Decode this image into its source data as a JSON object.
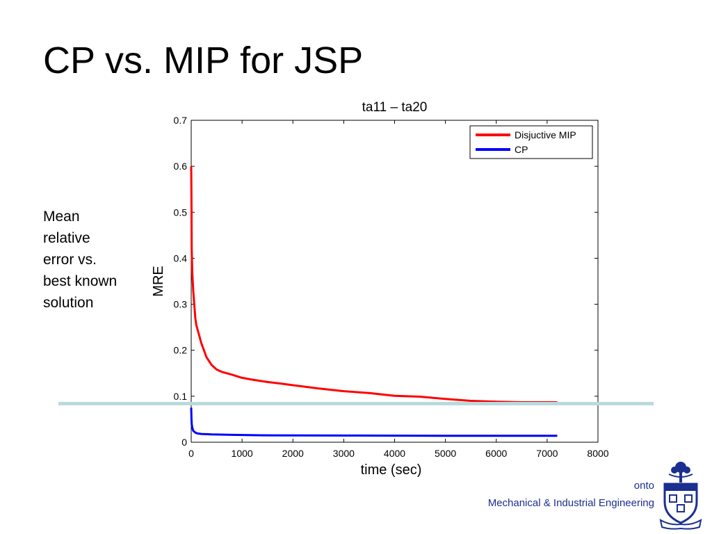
{
  "slide": {
    "title": "CP vs. MIP for JSP",
    "side_note": [
      "Mean",
      "relative",
      "error vs.",
      "best known",
      "solution"
    ],
    "footer": {
      "university_fragment": "onto",
      "department": "Mechanical & Industrial Engineering"
    },
    "crest_icon": "university-crest-icon",
    "colors": {
      "footer_text": "#1a2f8f",
      "divider": "#b9dadd"
    }
  },
  "chart_data": {
    "type": "line",
    "title": "ta11 – ta20",
    "xlabel": "time (sec)",
    "ylabel": "MRE",
    "xlim": [
      0,
      8000
    ],
    "ylim": [
      0,
      0.7
    ],
    "xticks": [
      0,
      1000,
      2000,
      3000,
      4000,
      5000,
      6000,
      7000,
      8000
    ],
    "yticks": [
      0,
      0.1,
      0.2,
      0.3,
      0.4,
      0.5,
      0.6,
      0.7
    ],
    "ytick_labels": [
      "0",
      "0.1",
      "0.2",
      "0.3",
      "0.4",
      "0.5",
      "0.6",
      "0.7"
    ],
    "grid": false,
    "legend_position": "top-right",
    "series": [
      {
        "name": "Disjuctive MIP",
        "color": "#ff0000",
        "x": [
          0,
          5,
          10,
          20,
          40,
          60,
          80,
          100,
          150,
          200,
          250,
          300,
          400,
          500,
          600,
          800,
          1000,
          1200,
          1500,
          1800,
          2000,
          2500,
          3000,
          3500,
          4000,
          4500,
          5000,
          5500,
          6000,
          6500,
          7000,
          7200
        ],
        "y": [
          0.6,
          0.52,
          0.42,
          0.37,
          0.33,
          0.3,
          0.27,
          0.255,
          0.235,
          0.215,
          0.2,
          0.185,
          0.168,
          0.158,
          0.153,
          0.147,
          0.14,
          0.136,
          0.131,
          0.127,
          0.124,
          0.117,
          0.111,
          0.107,
          0.101,
          0.099,
          0.094,
          0.09,
          0.088,
          0.087,
          0.087,
          0.087
        ]
      },
      {
        "name": "CP",
        "color": "#0000ff",
        "x": [
          0,
          5,
          10,
          20,
          40,
          80,
          120,
          200,
          400,
          800,
          1500,
          3000,
          5000,
          7000,
          7200
        ],
        "y": [
          0.075,
          0.05,
          0.04,
          0.032,
          0.025,
          0.021,
          0.019,
          0.018,
          0.017,
          0.016,
          0.015,
          0.0145,
          0.014,
          0.014,
          0.014
        ]
      }
    ]
  }
}
